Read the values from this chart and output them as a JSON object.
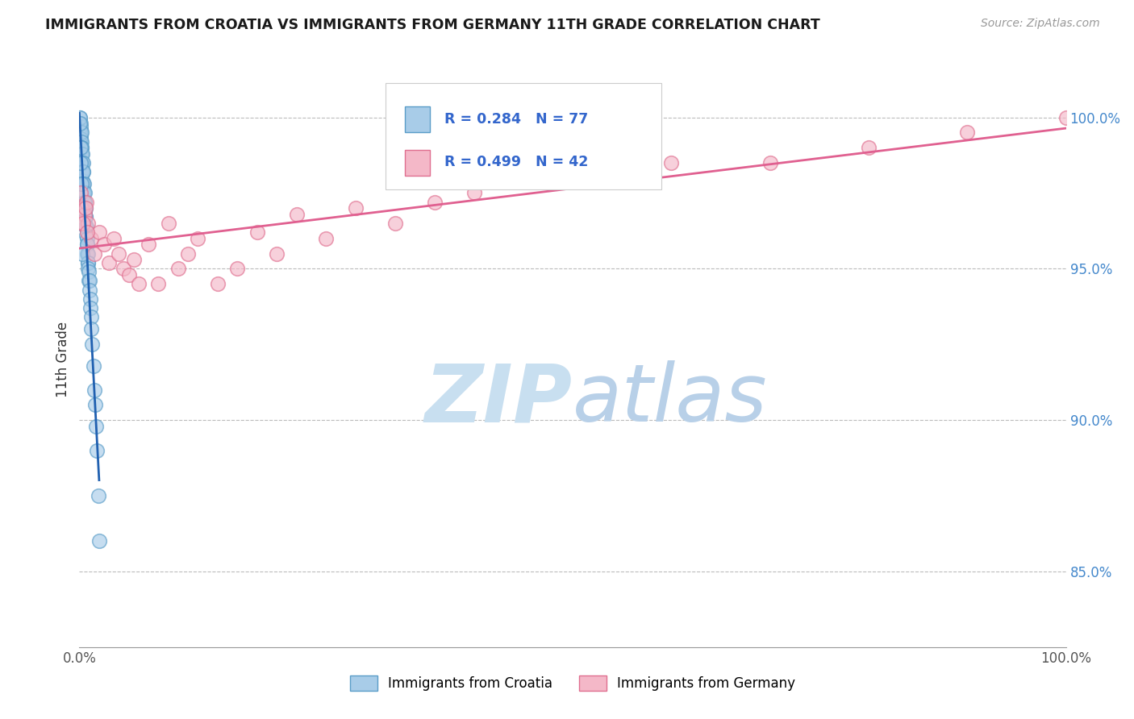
{
  "title": "IMMIGRANTS FROM CROATIA VS IMMIGRANTS FROM GERMANY 11TH GRADE CORRELATION CHART",
  "source_text": "Source: ZipAtlas.com",
  "ylabel": "11th Grade",
  "xmin": 0.0,
  "xmax": 100.0,
  "ymin": 82.5,
  "ymax": 101.5,
  "R_croatia": 0.284,
  "N_croatia": 77,
  "R_germany": 0.499,
  "N_germany": 42,
  "color_croatia_fill": "#a8cce8",
  "color_croatia_edge": "#5a9dc8",
  "color_germany_fill": "#f4b8c8",
  "color_germany_edge": "#e07090",
  "color_croatia_line": "#2060b0",
  "color_germany_line": "#e06090",
  "watermark_zip": "#c8dff0",
  "watermark_atlas": "#b8d0e8",
  "ytick_color": "#4488cc",
  "grid_color": "#bbbbbb",
  "croatia_x": [
    0.05,
    0.05,
    0.1,
    0.1,
    0.1,
    0.1,
    0.1,
    0.15,
    0.15,
    0.15,
    0.15,
    0.15,
    0.2,
    0.2,
    0.2,
    0.2,
    0.2,
    0.25,
    0.25,
    0.25,
    0.25,
    0.3,
    0.3,
    0.3,
    0.3,
    0.35,
    0.35,
    0.35,
    0.4,
    0.4,
    0.4,
    0.45,
    0.45,
    0.45,
    0.5,
    0.5,
    0.5,
    0.55,
    0.55,
    0.6,
    0.6,
    0.6,
    0.65,
    0.65,
    0.7,
    0.7,
    0.75,
    0.75,
    0.8,
    0.8,
    0.85,
    0.85,
    0.9,
    0.9,
    0.95,
    0.95,
    1.0,
    1.0,
    1.1,
    1.1,
    1.2,
    1.2,
    1.3,
    1.4,
    1.5,
    1.6,
    1.7,
    1.8,
    1.9,
    2.0,
    0.05,
    0.05,
    0.1,
    0.15,
    0.2,
    0.25,
    0.3
  ],
  "croatia_y": [
    100.0,
    99.5,
    99.8,
    99.6,
    99.4,
    99.2,
    99.0,
    99.7,
    99.5,
    99.3,
    99.1,
    98.9,
    99.5,
    99.2,
    99.0,
    98.8,
    98.5,
    99.0,
    98.8,
    98.5,
    98.2,
    98.8,
    98.5,
    98.2,
    97.9,
    98.5,
    98.2,
    97.8,
    98.2,
    97.8,
    97.5,
    97.8,
    97.5,
    97.2,
    97.5,
    97.2,
    96.9,
    97.2,
    96.9,
    97.0,
    96.7,
    96.4,
    96.7,
    96.4,
    96.4,
    96.1,
    96.0,
    95.8,
    95.8,
    95.5,
    95.5,
    95.2,
    95.2,
    95.0,
    94.9,
    94.6,
    94.6,
    94.3,
    94.0,
    93.7,
    93.4,
    93.0,
    92.5,
    91.8,
    91.0,
    90.5,
    89.8,
    89.0,
    87.5,
    86.0,
    100.0,
    99.8,
    99.0,
    98.5,
    97.8,
    97.0,
    95.5
  ],
  "germany_x": [
    0.1,
    0.2,
    0.3,
    0.5,
    0.7,
    0.9,
    1.2,
    1.5,
    2.0,
    2.5,
    3.0,
    3.5,
    4.0,
    4.5,
    5.0,
    5.5,
    6.0,
    7.0,
    8.0,
    9.0,
    10.0,
    11.0,
    12.0,
    14.0,
    16.0,
    18.0,
    20.0,
    22.0,
    25.0,
    28.0,
    32.0,
    36.0,
    40.0,
    50.0,
    60.0,
    70.0,
    80.0,
    90.0,
    100.0,
    0.4,
    0.6,
    0.8
  ],
  "germany_y": [
    97.5,
    97.0,
    96.5,
    96.8,
    97.2,
    96.5,
    96.0,
    95.5,
    96.2,
    95.8,
    95.2,
    96.0,
    95.5,
    95.0,
    94.8,
    95.3,
    94.5,
    95.8,
    94.5,
    96.5,
    95.0,
    95.5,
    96.0,
    94.5,
    95.0,
    96.2,
    95.5,
    96.8,
    96.0,
    97.0,
    96.5,
    97.2,
    97.5,
    98.0,
    98.5,
    98.5,
    99.0,
    99.5,
    100.0,
    96.5,
    97.0,
    96.2
  ]
}
